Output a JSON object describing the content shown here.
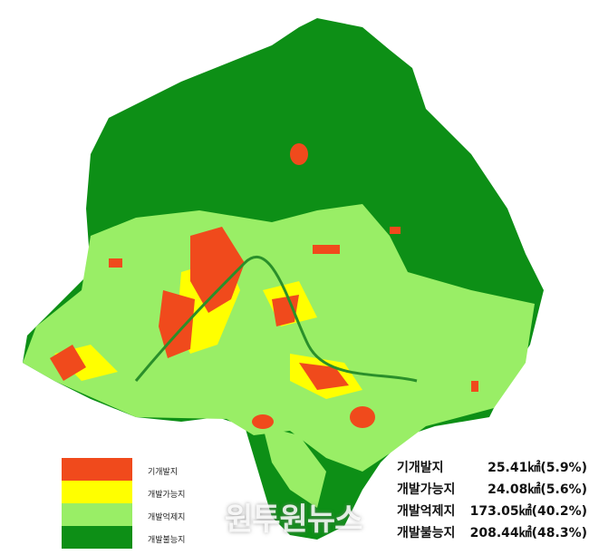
{
  "legend": [
    {
      "label": "기개발지",
      "color": "#f04a1c"
    },
    {
      "label": "개발가능지",
      "color": "#ffff00"
    },
    {
      "label": "개발억제지",
      "color": "#99ee66"
    },
    {
      "label": "개발불능지",
      "color": "#0d8f16"
    }
  ],
  "stats": [
    {
      "name": "기개발지",
      "value": "25.41㎢(5.9%)"
    },
    {
      "name": "개발가능지",
      "value": "24.08㎢(5.6%)"
    },
    {
      "name": "개발억제지",
      "value": "173.05㎢(40.2%)"
    },
    {
      "name": "개발불능지",
      "value": "208.44㎢(48.3%)"
    }
  ],
  "watermark": "원투원뉴스"
}
